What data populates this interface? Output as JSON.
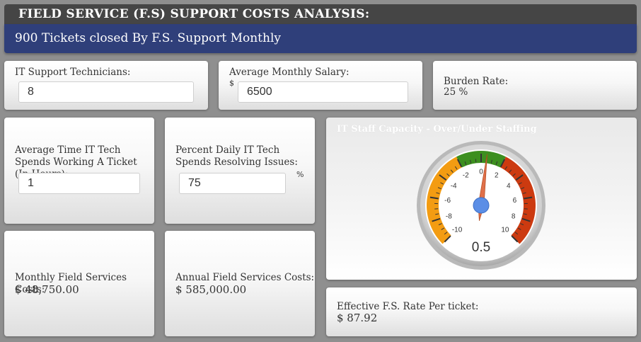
{
  "header": {
    "title": "FIELD SERVICE (F.S) SUPPORT COSTS ANALYSIS:",
    "subtitle": "900 Tickets closed By F.S. Support Monthly"
  },
  "inputs": {
    "technicians": {
      "label": "IT Support Technicians:",
      "value": "8"
    },
    "salary": {
      "label": "Average Monthly Salary:",
      "prefix": "$",
      "value": "6500"
    },
    "burden": {
      "label": "Burden Rate:",
      "value": "25 %"
    },
    "avg_time": {
      "label": "Average Time IT Tech Spends Working A Ticket (In Hours):",
      "value": "1"
    },
    "percent_daily": {
      "label": "Percent Daily IT Tech Spends Resolving Issues:",
      "value": "75",
      "suffix": "%"
    }
  },
  "results": {
    "monthly": {
      "label": "Monthly Field Services Costs:",
      "value": "$ 48,750.00"
    },
    "annual": {
      "label": "Annual Field Services Costs:",
      "value": "$ 585,000.00"
    },
    "rate": {
      "label": "Effective F.S. Rate Per ticket:",
      "value": "$ 87.92"
    }
  },
  "gauge": {
    "title": "IT Staff Capacity - Over/Under Staffing",
    "value": 0.5,
    "value_text": "0.5",
    "min": -10,
    "max": 10,
    "ticks": [
      "-10",
      "-8",
      "-6",
      "-4",
      "-2",
      "0",
      "2",
      "4",
      "6",
      "8",
      "10"
    ],
    "bands": [
      {
        "from": -10,
        "to": -2,
        "color": "#f39c12"
      },
      {
        "from": -2,
        "to": 2,
        "color": "#3c8f1f"
      },
      {
        "from": 2,
        "to": 10,
        "color": "#cc3a10"
      }
    ],
    "needle_color": "#e0704a",
    "hub_color": "#5b8ee6"
  }
}
